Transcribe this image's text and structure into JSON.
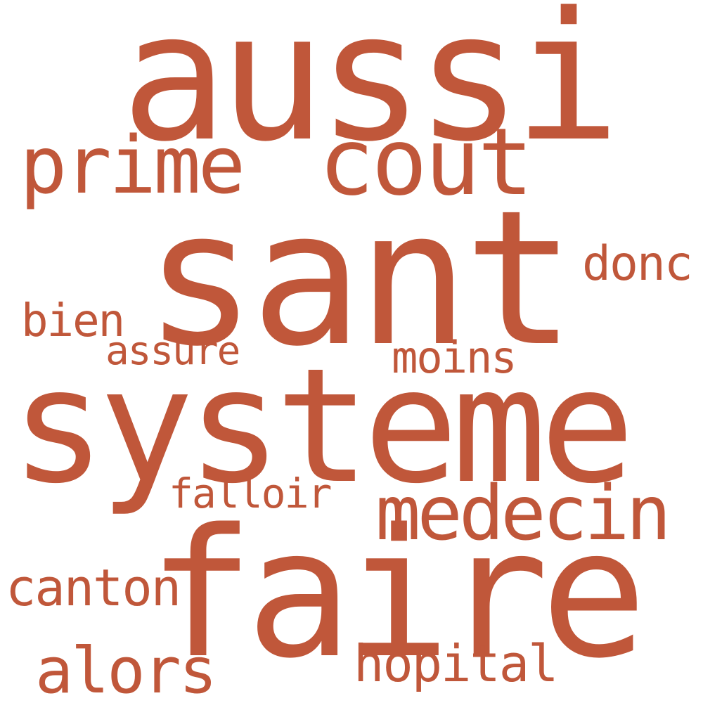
{
  "color": "#c0573a",
  "words": [
    {
      "text": "sant",
      "weight": 1.0
    },
    {
      "text": "systeme",
      "weight": 0.95
    },
    {
      "text": "aussi",
      "weight": 0.8
    },
    {
      "text": "faire",
      "weight": 0.8
    },
    {
      "text": "cout",
      "weight": 0.45
    },
    {
      "text": "medecin",
      "weight": 0.4
    },
    {
      "text": "prime",
      "weight": 0.4
    },
    {
      "text": "alors",
      "weight": 0.3
    },
    {
      "text": "hopital",
      "weight": 0.28
    },
    {
      "text": "canton",
      "weight": 0.28
    },
    {
      "text": "donc",
      "weight": 0.24
    },
    {
      "text": "bien",
      "weight": 0.24
    },
    {
      "text": "moins",
      "weight": 0.24
    },
    {
      "text": "falloir",
      "weight": 0.22
    },
    {
      "text": "assure",
      "weight": 0.2
    }
  ]
}
